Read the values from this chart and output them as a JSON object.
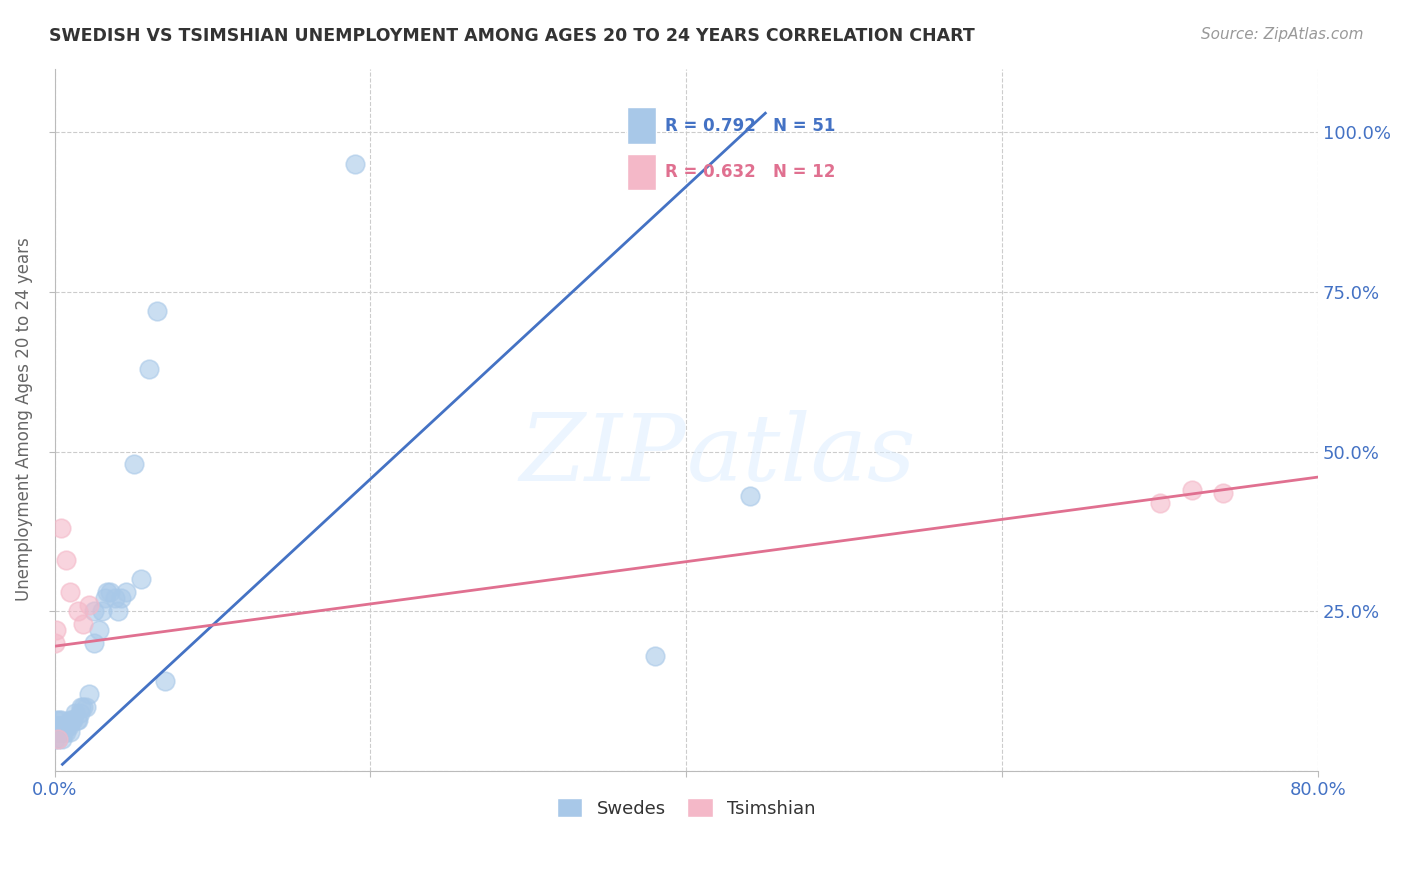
{
  "title": "SWEDISH VS TSIMSHIAN UNEMPLOYMENT AMONG AGES 20 TO 24 YEARS CORRELATION CHART",
  "source": "Source: ZipAtlas.com",
  "ylabel": "Unemployment Among Ages 20 to 24 years",
  "xlim": [
    0.0,
    0.8
  ],
  "ylim": [
    0.0,
    1.1
  ],
  "xticks": [
    0.0,
    0.2,
    0.4,
    0.6,
    0.8
  ],
  "xticklabels": [
    "0.0%",
    "",
    "",
    "",
    "80.0%"
  ],
  "yticks": [
    0.25,
    0.5,
    0.75,
    1.0
  ],
  "yticklabels": [
    "25.0%",
    "50.0%",
    "75.0%",
    "100.0%"
  ],
  "swedish_color": "#a8c8e8",
  "tsimshian_color": "#f4b8c8",
  "swedish_line_color": "#4472c4",
  "tsimshian_line_color": "#e07090",
  "R_swedish": 0.792,
  "N_swedish": 51,
  "R_tsimshian": 0.632,
  "N_tsimshian": 12,
  "background_color": "#ffffff",
  "grid_color": "#cccccc",
  "swedish_x": [
    0.0,
    0.001,
    0.001,
    0.001,
    0.002,
    0.002,
    0.002,
    0.003,
    0.003,
    0.003,
    0.004,
    0.004,
    0.005,
    0.005,
    0.005,
    0.006,
    0.007,
    0.007,
    0.008,
    0.009,
    0.01,
    0.01,
    0.011,
    0.012,
    0.013,
    0.014,
    0.015,
    0.016,
    0.017,
    0.018,
    0.02,
    0.022,
    0.025,
    0.025,
    0.028,
    0.03,
    0.032,
    0.033,
    0.035,
    0.038,
    0.04,
    0.042,
    0.045,
    0.05,
    0.055,
    0.06,
    0.065,
    0.07,
    0.19,
    0.38,
    0.44
  ],
  "swedish_y": [
    0.05,
    0.06,
    0.07,
    0.08,
    0.05,
    0.06,
    0.07,
    0.06,
    0.07,
    0.08,
    0.07,
    0.08,
    0.05,
    0.06,
    0.07,
    0.06,
    0.06,
    0.07,
    0.07,
    0.07,
    0.06,
    0.08,
    0.08,
    0.08,
    0.09,
    0.08,
    0.08,
    0.09,
    0.1,
    0.1,
    0.1,
    0.12,
    0.2,
    0.25,
    0.22,
    0.25,
    0.27,
    0.28,
    0.28,
    0.27,
    0.25,
    0.27,
    0.28,
    0.48,
    0.3,
    0.63,
    0.72,
    0.14,
    0.95,
    0.18,
    0.43
  ],
  "tsimshian_x": [
    0.0,
    0.001,
    0.002,
    0.004,
    0.007,
    0.01,
    0.015,
    0.018,
    0.022,
    0.7,
    0.72,
    0.74
  ],
  "tsimshian_y": [
    0.2,
    0.22,
    0.05,
    0.38,
    0.33,
    0.28,
    0.25,
    0.23,
    0.26,
    0.42,
    0.44,
    0.435
  ],
  "sw_line_x": [
    0.005,
    0.45
  ],
  "sw_line_y": [
    0.01,
    1.03
  ],
  "ts_line_x": [
    0.0,
    0.8
  ],
  "ts_line_y": [
    0.195,
    0.46
  ]
}
